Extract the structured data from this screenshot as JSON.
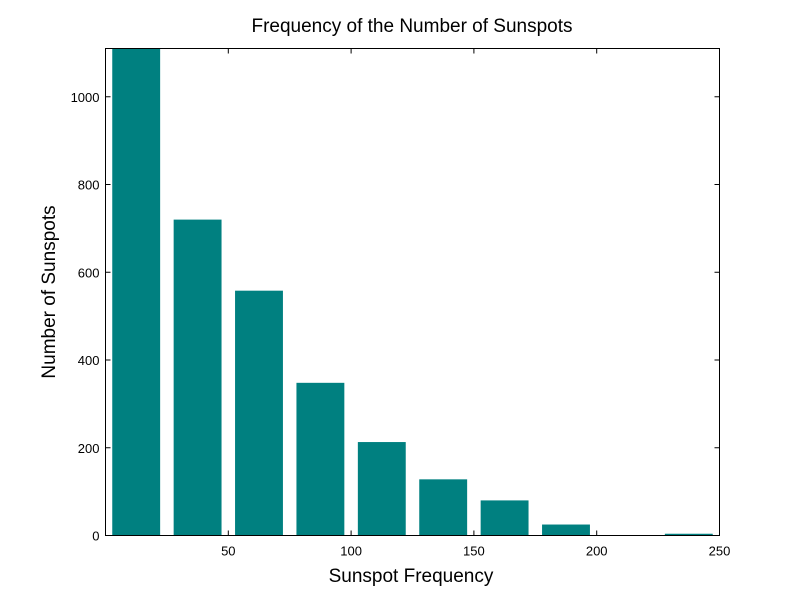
{
  "chart_data": {
    "type": "bar",
    "title": "Frequency of the Number of Sunspots",
    "xlabel": "Sunspot Frequency",
    "ylabel": "Number of Sunspots",
    "x": [
      12.5,
      37.5,
      62.5,
      87.5,
      112.5,
      137.5,
      162.5,
      187.5,
      212.5,
      237.5
    ],
    "values": [
      1110,
      720,
      558,
      348,
      213,
      128,
      80,
      25,
      1,
      4
    ],
    "bar_width": 19.5,
    "xlim": [
      0,
      250
    ],
    "ylim": [
      0,
      1110
    ],
    "xticks": [
      50,
      100,
      150,
      200,
      250
    ],
    "yticks": [
      0,
      200,
      400,
      600,
      800,
      1000
    ],
    "bar_color": "#008080",
    "grid": false
  }
}
